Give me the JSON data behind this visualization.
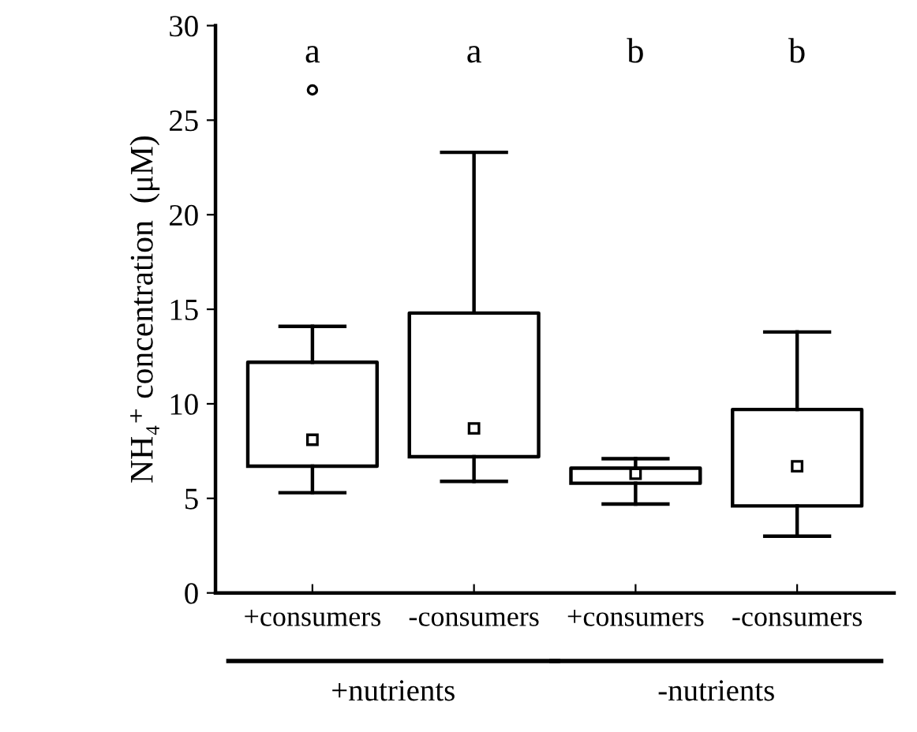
{
  "chart_data": {
    "type": "box",
    "ylabel": "NH₄⁺ concentration  (μM)",
    "categories": [
      "+consumers",
      "-consumers",
      "+consumers",
      "-consumers"
    ],
    "boxes": [
      {
        "low": 5.3,
        "q1": 6.7,
        "median": 8.1,
        "q3": 12.2,
        "high": 14.1,
        "outliers": [
          26.6
        ]
      },
      {
        "low": 5.9,
        "q1": 7.2,
        "median": 8.7,
        "q3": 14.8,
        "high": 23.3
      },
      {
        "low": 4.7,
        "q1": 5.8,
        "median": 6.3,
        "q3": 6.6,
        "high": 7.1
      },
      {
        "low": 3.0,
        "q1": 4.6,
        "median": 6.7,
        "q3": 9.7,
        "high": 13.8
      }
    ],
    "ylim": [
      0,
      30
    ],
    "yticks": [
      0,
      5,
      10,
      15,
      20,
      25,
      30
    ],
    "grid": false,
    "legend": false,
    "marker": "square",
    "annotations": [
      "a",
      "a",
      "b",
      "b",
      "+nutrients",
      "-nutrients"
    ]
  }
}
